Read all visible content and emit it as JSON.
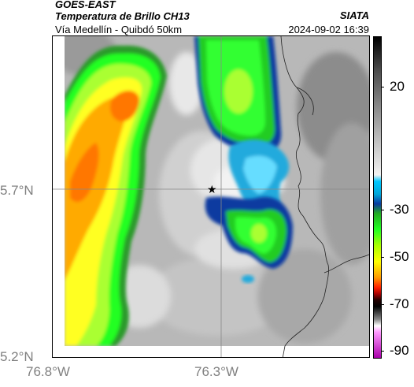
{
  "header": {
    "satellite": "GOES-EAST",
    "product": "Temperatura de Brillo CH13",
    "route": "Vía Medellín - Quibdó 50km",
    "organization": "SIATA",
    "datetime": "2024-09-02 16:39"
  },
  "map": {
    "lat_labels": [
      "5.7°N",
      "5.2°N"
    ],
    "lon_labels": [
      "76.8°W",
      "76.3°W"
    ],
    "marker": "star-icon"
  },
  "colorbar": {
    "labels": [
      "20",
      "-30",
      "-50",
      "-70",
      "-90"
    ]
  }
}
